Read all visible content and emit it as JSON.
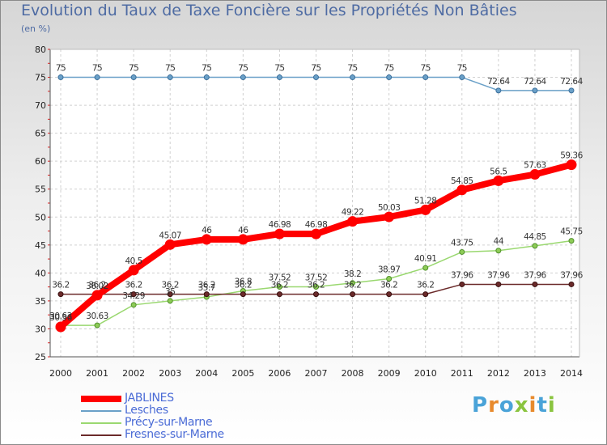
{
  "header": {
    "title": "Evolution du Taux de Taxe Foncière sur les Propriétés Non Bâties",
    "subtitle": "(en %)"
  },
  "logo": {
    "text": "Proxiti"
  },
  "chart_data": {
    "type": "line",
    "title": "Evolution du Taux de Taxe Foncière sur les Propriétés Non Bâties",
    "ylabel": "(en %)",
    "xlabel": "",
    "ylim": [
      25,
      80
    ],
    "y_ticks": [
      25,
      30,
      35,
      40,
      45,
      50,
      55,
      60,
      65,
      70,
      75,
      80
    ],
    "grid": true,
    "legend_position": "bottom-left",
    "categories": [
      "2000",
      "2001",
      "2002",
      "2003",
      "2004",
      "2005",
      "2006",
      "2007",
      "2008",
      "2009",
      "2010",
      "2011",
      "2012",
      "2013",
      "2014"
    ],
    "series": [
      {
        "name": "JABLINES",
        "color": "#ff0000",
        "values": [
          30.36,
          36.02,
          40.5,
          45.07,
          46,
          46,
          46.98,
          46.98,
          49.22,
          50.03,
          51.28,
          54.85,
          56.5,
          57.63,
          59.36
        ],
        "labels": [
          "30.36",
          "36.02",
          "40.5",
          "45.07",
          "46",
          "46",
          "46.98",
          "46.98",
          "49.22",
          "50.03",
          "51.28",
          "54.85",
          "56.5",
          "57.63",
          "59.36"
        ]
      },
      {
        "name": "Lesches",
        "color": "#6aa0c8",
        "values": [
          75,
          75,
          75,
          75,
          75,
          75,
          75,
          75,
          75,
          75,
          75,
          75,
          72.64,
          72.64,
          72.64
        ],
        "labels": [
          "75",
          "75",
          "75",
          "75",
          "75",
          "75",
          "75",
          "75",
          "75",
          "75",
          "75",
          "75",
          "72.64",
          "72.64",
          "72.64"
        ]
      },
      {
        "name": "Précy-sur-Marne",
        "color": "#9ad870",
        "values": [
          30.63,
          30.63,
          34.29,
          35,
          35.7,
          36.8,
          37.52,
          37.52,
          38.2,
          38.97,
          40.91,
          43.75,
          44,
          44.85,
          45.75
        ],
        "labels": [
          "30.63",
          "30.63",
          "34.29",
          "35",
          "35.7",
          "36.8",
          "37.52",
          "37.52",
          "38.2",
          "38.97",
          "40.91",
          "43.75",
          "44",
          "44.85",
          "45.75"
        ]
      },
      {
        "name": "Fresnes-sur-Marne",
        "color": "#6b2a2a",
        "values": [
          36.2,
          36.2,
          36.2,
          36.2,
          36.2,
          36.2,
          36.2,
          36.2,
          36.2,
          36.2,
          36.2,
          37.96,
          37.96,
          37.96,
          37.96
        ],
        "labels": [
          "36.2",
          "36.2",
          "36.2",
          "36.2",
          "36.2",
          "36.2",
          "36.2",
          "36.2",
          "36.2",
          "36.2",
          "36.2",
          "37.96",
          "37.96",
          "37.96",
          "37.96"
        ]
      }
    ]
  }
}
